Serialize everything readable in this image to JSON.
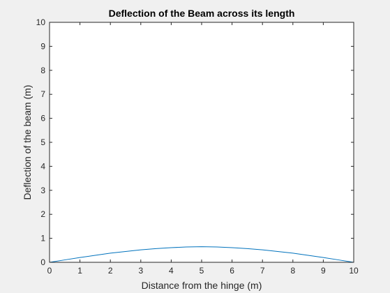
{
  "chart_data": {
    "type": "line",
    "title": "Deflection of the Beam across its length",
    "xlabel": "Distance from the hinge (m)",
    "ylabel": "Deflection of the beam (m)",
    "xlim": [
      0,
      10
    ],
    "ylim": [
      0,
      10
    ],
    "xticks": [
      0,
      1,
      2,
      3,
      4,
      5,
      6,
      7,
      8,
      9,
      10
    ],
    "yticks": [
      0,
      1,
      2,
      3,
      4,
      5,
      6,
      7,
      8,
      9,
      10
    ],
    "grid": false,
    "series": [
      {
        "color": "#0072bd",
        "x": [
          0,
          0.5,
          1,
          1.5,
          2,
          2.5,
          3,
          3.5,
          4,
          4.5,
          5,
          5.5,
          6,
          6.5,
          7,
          7.5,
          8,
          8.5,
          9,
          9.5,
          10
        ],
        "y": [
          0,
          0.1,
          0.2,
          0.29,
          0.38,
          0.45,
          0.52,
          0.57,
          0.61,
          0.64,
          0.65,
          0.64,
          0.61,
          0.57,
          0.52,
          0.45,
          0.38,
          0.29,
          0.2,
          0.1,
          0
        ]
      }
    ]
  }
}
